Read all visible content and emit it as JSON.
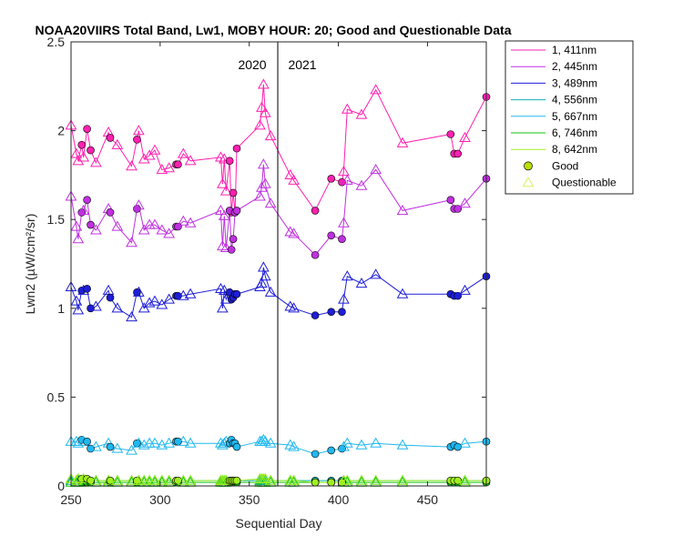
{
  "chart_data": {
    "type": "line",
    "title": "NOAA20VIIRS Total Band, Lw1, MOBY HOUR: 20;  Good and Questionable Data",
    "xlabel": "Sequential Day",
    "ylabel": "Lwn2 (µW/cm²/sr)",
    "xlim": [
      250,
      483
    ],
    "ylim": [
      0,
      2.5
    ],
    "xticks": [
      250,
      300,
      350,
      400,
      450
    ],
    "yticks": [
      0,
      0.5,
      1,
      1.5,
      2,
      2.5
    ],
    "ytick_labels": [
      "0",
      "0.5",
      "1",
      "1.5",
      "2",
      "2.5"
    ],
    "year_divider": {
      "x": 366,
      "left_label": "2020",
      "right_label": "2021"
    },
    "x": [
      250,
      253,
      254,
      256,
      257,
      259,
      261,
      264,
      271,
      272,
      276,
      284,
      287,
      288,
      291,
      294,
      297,
      301,
      305,
      309,
      310,
      313,
      317,
      334,
      335,
      336,
      337,
      339,
      340,
      341,
      342,
      343,
      356,
      357,
      358,
      359,
      362,
      373,
      375,
      387,
      396,
      402,
      403,
      405,
      413,
      421,
      436,
      463,
      465,
      467,
      471,
      483
    ],
    "series": [
      {
        "name": "1, 411nm",
        "color": "#ff20b0",
        "values": [
          2.03,
          1.87,
          1.83,
          1.92,
          1.85,
          2.01,
          1.89,
          1.82,
          1.99,
          1.96,
          1.92,
          1.8,
          1.95,
          2.0,
          1.84,
          1.86,
          1.89,
          1.78,
          1.79,
          1.81,
          1.81,
          1.87,
          1.83,
          1.85,
          1.7,
          1.84,
          1.66,
          1.83,
          1.54,
          1.65,
          1.54,
          1.9,
          2.03,
          2.13,
          2.26,
          2.1,
          1.97,
          1.75,
          1.72,
          1.55,
          1.73,
          1.71,
          1.77,
          2.12,
          2.09,
          2.23,
          1.93,
          1.98,
          1.87,
          1.87,
          1.96,
          2.19
        ]
      },
      {
        "name": "2, 445nm",
        "color": "#c030e0",
        "values": [
          1.63,
          1.46,
          1.39,
          1.54,
          1.55,
          1.61,
          1.47,
          1.44,
          1.56,
          1.54,
          1.46,
          1.37,
          1.56,
          1.58,
          1.44,
          1.47,
          1.47,
          1.44,
          1.42,
          1.46,
          1.46,
          1.49,
          1.48,
          1.55,
          1.35,
          1.52,
          1.34,
          1.55,
          1.33,
          1.39,
          1.54,
          1.55,
          1.63,
          1.68,
          1.81,
          1.7,
          1.59,
          1.43,
          1.42,
          1.3,
          1.41,
          1.39,
          1.48,
          1.72,
          1.69,
          1.78,
          1.55,
          1.61,
          1.56,
          1.56,
          1.59,
          1.73
        ]
      },
      {
        "name": "3, 489nm",
        "color": "#1e1ed8",
        "values": [
          1.12,
          1.04,
          0.99,
          1.1,
          1.1,
          1.11,
          1.0,
          1.01,
          1.1,
          1.06,
          1.0,
          0.95,
          1.09,
          1.09,
          1.0,
          1.03,
          1.04,
          1.02,
          1.05,
          1.07,
          1.07,
          1.07,
          1.08,
          1.11,
          1.0,
          1.1,
          1.05,
          1.09,
          1.05,
          1.06,
          1.08,
          1.08,
          1.12,
          1.14,
          1.23,
          1.18,
          1.09,
          1.01,
          1.0,
          0.96,
          0.98,
          0.98,
          1.05,
          1.18,
          1.14,
          1.19,
          1.08,
          1.08,
          1.07,
          1.07,
          1.1,
          1.18
        ]
      },
      {
        "name": "4, 556nm",
        "color": "#10b0b0",
        "values": [
          0.03,
          0.03,
          0.03,
          0.03,
          0.03,
          0.03,
          0.03,
          0.03,
          0.03,
          0.03,
          0.03,
          0.03,
          0.03,
          0.03,
          0.03,
          0.03,
          0.03,
          0.03,
          0.03,
          0.03,
          0.03,
          0.03,
          0.03,
          0.03,
          0.03,
          0.03,
          0.03,
          0.03,
          0.03,
          0.03,
          0.03,
          0.03,
          0.03,
          0.03,
          0.03,
          0.03,
          0.03,
          0.03,
          0.03,
          0.03,
          0.03,
          0.03,
          0.03,
          0.03,
          0.03,
          0.03,
          0.03,
          0.03,
          0.03,
          0.03,
          0.03,
          0.03
        ]
      },
      {
        "name": "5, 667nm",
        "color": "#20b8f0",
        "values": [
          0.25,
          0.25,
          0.24,
          0.26,
          0.25,
          0.25,
          0.21,
          0.22,
          0.24,
          0.22,
          0.21,
          0.2,
          0.24,
          0.24,
          0.23,
          0.24,
          0.24,
          0.23,
          0.24,
          0.25,
          0.25,
          0.25,
          0.24,
          0.24,
          0.23,
          0.24,
          0.25,
          0.24,
          0.26,
          0.24,
          0.24,
          0.22,
          0.25,
          0.25,
          0.26,
          0.25,
          0.24,
          0.23,
          0.22,
          0.18,
          0.2,
          0.21,
          0.22,
          0.24,
          0.23,
          0.24,
          0.23,
          0.22,
          0.23,
          0.22,
          0.24,
          0.25
        ]
      },
      {
        "name": "6, 746nm",
        "color": "#10c010",
        "values": [
          0.02,
          0.02,
          0.02,
          0.02,
          0.02,
          0.02,
          0.02,
          0.02,
          0.02,
          0.02,
          0.02,
          0.02,
          0.02,
          0.02,
          0.02,
          0.02,
          0.02,
          0.02,
          0.02,
          0.02,
          0.02,
          0.02,
          0.02,
          0.02,
          0.02,
          0.02,
          0.02,
          0.02,
          0.02,
          0.02,
          0.02,
          0.02,
          0.02,
          0.02,
          0.02,
          0.02,
          0.02,
          0.02,
          0.02,
          0.02,
          0.02,
          0.02,
          0.02,
          0.02,
          0.02,
          0.02,
          0.02,
          0.02,
          0.02,
          0.02,
          0.02,
          0.02
        ]
      },
      {
        "name": "8, 642nm",
        "color": "#a0f020",
        "values": [
          0.04,
          0.03,
          0.04,
          0.04,
          0.04,
          0.04,
          0.03,
          0.03,
          0.03,
          0.03,
          0.03,
          0.03,
          0.03,
          0.03,
          0.03,
          0.03,
          0.03,
          0.03,
          0.03,
          0.03,
          0.03,
          0.03,
          0.03,
          0.03,
          0.03,
          0.03,
          0.03,
          0.03,
          0.03,
          0.03,
          0.03,
          0.03,
          0.04,
          0.04,
          0.04,
          0.04,
          0.03,
          0.03,
          0.03,
          0.02,
          0.02,
          0.02,
          0.03,
          0.03,
          0.03,
          0.03,
          0.03,
          0.03,
          0.03,
          0.03,
          0.03,
          0.03
        ]
      }
    ],
    "quality": [
      "Q",
      "Q",
      "Q",
      "G",
      "Q",
      "G",
      "G",
      "Q",
      "Q",
      "G",
      "Q",
      "Q",
      "G",
      "Q",
      "Q",
      "Q",
      "Q",
      "Q",
      "Q",
      "G",
      "G",
      "Q",
      "Q",
      "Q",
      "Q",
      "Q",
      "Q",
      "G",
      "G",
      "G",
      "G",
      "G",
      "Q",
      "Q",
      "Q",
      "Q",
      "Q",
      "Q",
      "Q",
      "G",
      "G",
      "G",
      "Q",
      "Q",
      "Q",
      "Q",
      "Q",
      "G",
      "G",
      "G",
      "Q",
      "G"
    ],
    "marker_legend": [
      {
        "label": "Good",
        "marker": "circle",
        "color": "#b8e000"
      },
      {
        "label": "Questionable",
        "marker": "triangle",
        "color": "#d8f060"
      }
    ],
    "legend_location": "outside-top-right",
    "grid": false
  }
}
